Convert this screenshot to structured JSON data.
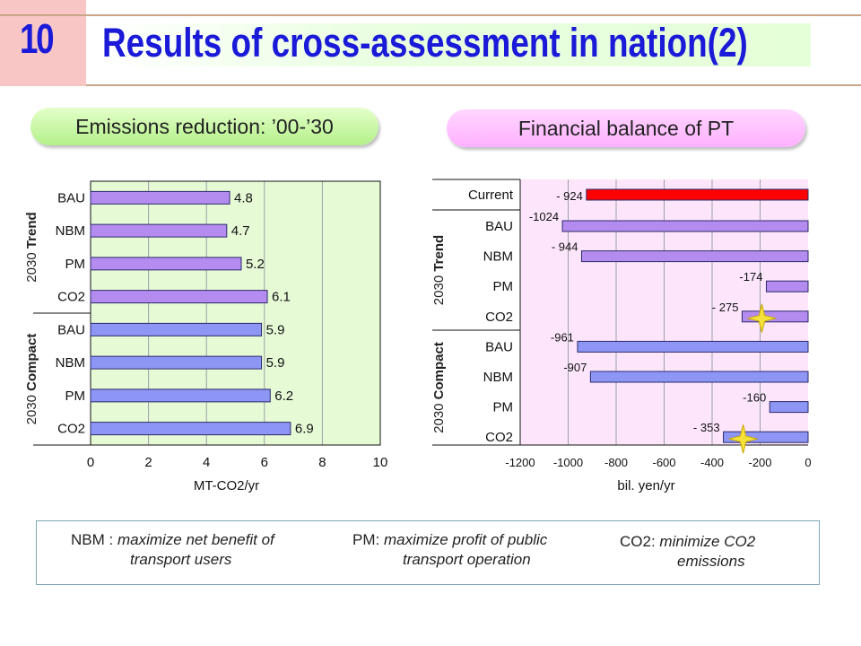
{
  "header": {
    "slide_number": "10",
    "title": "Results of cross-assessment in nation(2)"
  },
  "left_panel": {
    "pill_label": "Emissions reduction: ’00-’30"
  },
  "right_panel": {
    "pill_label": "Financial balance of PT"
  },
  "colors": {
    "title_blue": "#1a1ad8",
    "trend_bar": "#b48cf0",
    "compact_bar": "#8e96f5",
    "current_bar": "#ff0000",
    "left_bg": "#e6fad6",
    "right_bg": "#fde6fc",
    "star": "#f5e23a"
  },
  "chart_data": [
    {
      "type": "bar",
      "orientation": "horizontal",
      "categories": [
        "BAU",
        "NBM",
        "PM",
        "CO2",
        "BAU",
        "NBM",
        "PM",
        "CO2"
      ],
      "groups": [
        {
          "label_prefix": "2030",
          "label_bold": "Trend",
          "members": [
            0,
            1,
            2,
            3
          ]
        },
        {
          "label_prefix": "2030",
          "label_bold": "Compact",
          "members": [
            4,
            5,
            6,
            7
          ]
        }
      ],
      "values": [
        4.8,
        4.7,
        5.2,
        6.1,
        5.9,
        5.9,
        6.2,
        6.9
      ],
      "value_labels": [
        "4.8",
        "4.7",
        "5.2",
        "6.1",
        "5.9",
        "5.9",
        "6.2",
        "6.9"
      ],
      "xlabel": "MT-CO2/yr",
      "xlim": [
        0,
        10
      ],
      "xticks": [
        "0",
        "2",
        "4",
        "6",
        "8",
        "10"
      ],
      "grid": true
    },
    {
      "type": "bar",
      "orientation": "horizontal",
      "categories": [
        "Current",
        "BAU",
        "NBM",
        "PM",
        "CO2",
        "BAU",
        "NBM",
        "PM",
        "CO2"
      ],
      "groups": [
        {
          "label_prefix": "2030",
          "label_bold": "Trend",
          "members": [
            1,
            2,
            3,
            4
          ]
        },
        {
          "label_prefix": "2030",
          "label_bold": "Compact",
          "members": [
            5,
            6,
            7,
            8
          ]
        }
      ],
      "values": [
        -924,
        -1024,
        -944,
        -174,
        -275,
        -961,
        -907,
        -160,
        -353
      ],
      "value_labels": [
        "- 924",
        "-1024",
        "- 944",
        "-174",
        "- 275",
        "-961",
        "-907",
        "-160",
        "- 353"
      ],
      "highlighted": [
        4,
        8
      ],
      "xlabel": "bil. yen/yr",
      "xlim": [
        -1200,
        0
      ],
      "xticks": [
        "-1200",
        "-1000",
        "-800",
        "-600",
        "-400",
        "-200",
        "0"
      ],
      "grid": true
    }
  ],
  "legend": {
    "nbm_key": "NBM : ",
    "nbm_line1": "maximize net benefit of",
    "nbm_line2": "transport users",
    "pm_key": "PM: ",
    "pm_line1": "maximize profit of public",
    "pm_line2": "transport operation",
    "co2_key": "CO2: ",
    "co2_line1": "minimize CO2",
    "co2_line2": "emissions"
  }
}
